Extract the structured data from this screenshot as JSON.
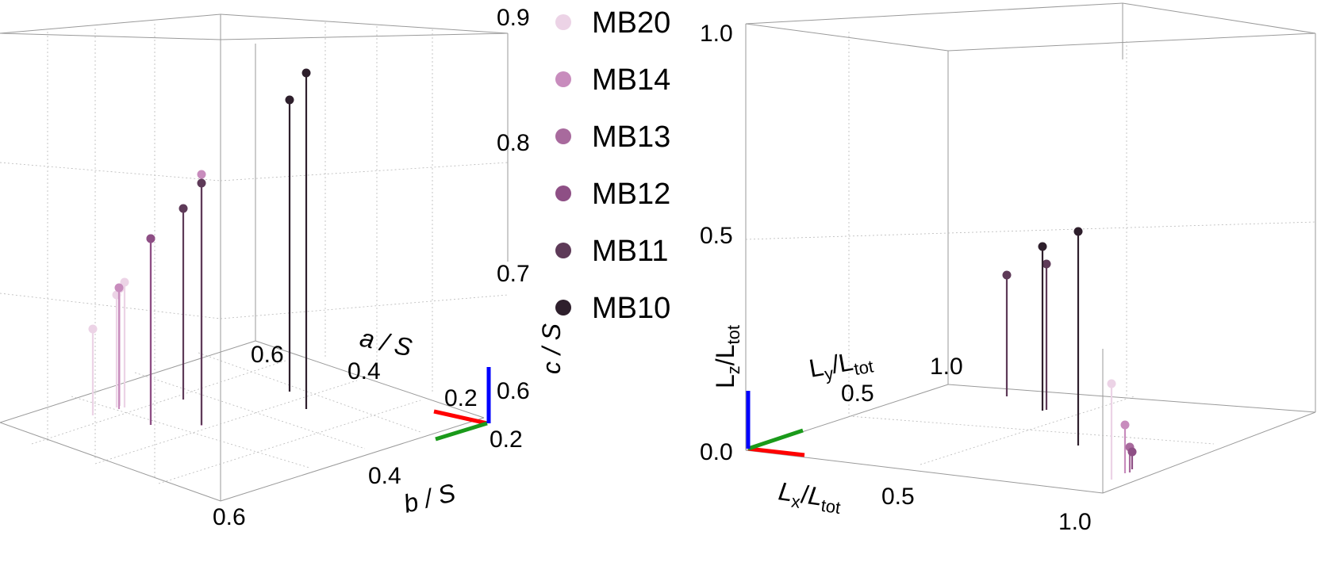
{
  "colors": {
    "MB20": "#ecd3e6",
    "MB14": "#c88cbd",
    "MB13": "#a86a9d",
    "MB12": "#8e4f85",
    "MB11": "#5e3a58",
    "MB10": "#2e1f2c",
    "axis_red": "#ff0000",
    "axis_green": "#1a9a1a",
    "axis_blue": "#0000ff"
  },
  "legend": {
    "entries": [
      "MB20",
      "MB14",
      "MB13",
      "MB12",
      "MB11",
      "MB10"
    ],
    "placement": "center, between panels"
  },
  "chart_data": [
    {
      "type": "scatter",
      "kind": "3d-stem",
      "title": "",
      "xlabel": "b / S",
      "ylabel": "a / S",
      "zlabel": "c / S",
      "x_ticks": [
        "0.2",
        "0.4",
        "0.6"
      ],
      "y_ticks": [
        "0.2",
        "0.4",
        "0.6"
      ],
      "z_ticks": [
        "0.6",
        "0.7",
        "0.8",
        "0.9"
      ],
      "zlim": [
        0.6,
        0.9
      ],
      "grid": true,
      "series": [
        {
          "name": "MB20",
          "points": [
            {
              "z": 0.7
            },
            {
              "z": 0.72
            },
            {
              "z": 0.71
            },
            {
              "z": 0.68
            }
          ]
        },
        {
          "name": "MB14",
          "points": [
            {
              "z": 0.72
            },
            {
              "z": 0.79
            }
          ]
        },
        {
          "name": "MB13",
          "points": [
            {
              "z": 0.75
            }
          ]
        },
        {
          "name": "MB12",
          "points": [
            {
              "z": 0.77
            }
          ]
        },
        {
          "name": "MB11",
          "points": [
            {
              "z": 0.77
            },
            {
              "z": 0.83
            }
          ]
        },
        {
          "name": "MB10",
          "points": [
            {
              "z": 0.84
            },
            {
              "z": 0.86
            }
          ]
        }
      ]
    },
    {
      "type": "scatter",
      "kind": "3d-stem",
      "title": "",
      "xlabel": "L",
      "xlabel_sub": "x",
      "ylabel": "L",
      "ylabel_sub": "y",
      "zlabel": "L",
      "zlabel_sub": "z",
      "denominator": "L",
      "denominator_sub": "tot",
      "x_ticks": [
        "0.5",
        "1.0"
      ],
      "y_ticks": [
        "0.5",
        "1.0"
      ],
      "z_ticks": [
        "0.0",
        "0.5",
        "1.0"
      ],
      "zlim": [
        0.0,
        1.0
      ],
      "grid": true,
      "series": [
        {
          "name": "MB20",
          "points": [
            {
              "z": 0.15
            }
          ]
        },
        {
          "name": "MB14",
          "points": [
            {
              "z": 0.06
            }
          ]
        },
        {
          "name": "MB13",
          "points": [
            {
              "z": 0.03
            }
          ]
        },
        {
          "name": "MB12",
          "points": [
            {
              "z": 0.02
            }
          ]
        },
        {
          "name": "MB11",
          "points": [
            {
              "z": 0.42
            },
            {
              "z": 0.47
            }
          ]
        },
        {
          "name": "MB10",
          "points": [
            {
              "z": 0.42
            },
            {
              "z": 0.54
            }
          ]
        }
      ]
    }
  ]
}
